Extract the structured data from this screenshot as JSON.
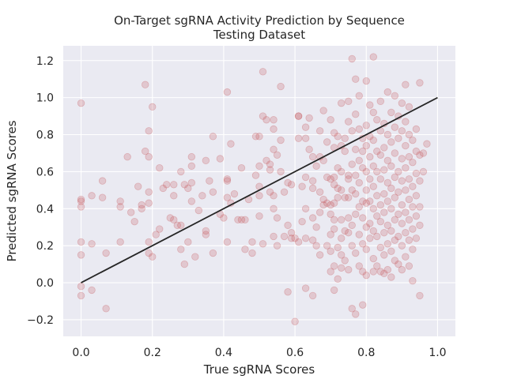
{
  "chart_data": {
    "type": "scatter",
    "title": "On-Target sgRNA Activity Prediction by Sequence",
    "subtitle": "Testing Dataset",
    "xlabel": "True sgRNA Scores",
    "ylabel": "Predicted sgRNA Scores",
    "xlim": [
      -0.05,
      1.05
    ],
    "ylim": [
      -0.29,
      1.28
    ],
    "xticks": [
      0.0,
      0.2,
      0.4,
      0.6,
      0.8,
      1.0
    ],
    "xtick_labels": [
      "0.0",
      "0.2",
      "0.4",
      "0.6",
      "0.8",
      "1.0"
    ],
    "yticks": [
      -0.2,
      0.0,
      0.2,
      0.4,
      0.6,
      0.8,
      1.0,
      1.2
    ],
    "ytick_labels": [
      "−0.2",
      "0.0",
      "0.2",
      "0.4",
      "0.6",
      "0.8",
      "1.0",
      "1.2"
    ],
    "grid": true,
    "colors": {
      "points": "#c44e52",
      "line": "#262626",
      "background": "#eaeaf2",
      "grid": "#ffffff"
    },
    "reference_line": {
      "x": [
        0.0,
        1.0
      ],
      "y": [
        0.0,
        1.0
      ]
    },
    "points": [
      [
        0.0,
        0.97
      ],
      [
        0.0,
        0.45
      ],
      [
        0.0,
        0.44
      ],
      [
        0.0,
        0.41
      ],
      [
        0.0,
        0.22
      ],
      [
        0.0,
        0.15
      ],
      [
        0.0,
        -0.02
      ],
      [
        0.0,
        -0.07
      ],
      [
        0.03,
        -0.04
      ],
      [
        0.03,
        0.47
      ],
      [
        0.03,
        0.21
      ],
      [
        0.06,
        0.46
      ],
      [
        0.06,
        0.55
      ],
      [
        0.07,
        0.16
      ],
      [
        0.07,
        -0.14
      ],
      [
        0.11,
        0.44
      ],
      [
        0.11,
        0.41
      ],
      [
        0.11,
        0.22
      ],
      [
        0.13,
        0.68
      ],
      [
        0.14,
        0.38
      ],
      [
        0.15,
        0.33
      ],
      [
        0.16,
        0.52
      ],
      [
        0.17,
        0.42
      ],
      [
        0.17,
        0.4
      ],
      [
        0.18,
        0.71
      ],
      [
        0.18,
        1.07
      ],
      [
        0.19,
        0.68
      ],
      [
        0.19,
        0.82
      ],
      [
        0.2,
        0.95
      ],
      [
        0.19,
        0.49
      ],
      [
        0.19,
        0.43
      ],
      [
        0.19,
        0.22
      ],
      [
        0.19,
        0.16
      ],
      [
        0.2,
        0.14
      ],
      [
        0.21,
        0.26
      ],
      [
        0.22,
        0.29
      ],
      [
        0.22,
        0.62
      ],
      [
        0.23,
        0.51
      ],
      [
        0.24,
        0.53
      ],
      [
        0.25,
        0.35
      ],
      [
        0.26,
        0.53
      ],
      [
        0.26,
        0.47
      ],
      [
        0.26,
        0.34
      ],
      [
        0.27,
        0.31
      ],
      [
        0.28,
        0.6
      ],
      [
        0.28,
        0.18
      ],
      [
        0.28,
        0.31
      ],
      [
        0.29,
        0.53
      ],
      [
        0.29,
        0.1
      ],
      [
        0.3,
        0.22
      ],
      [
        0.3,
        0.51
      ],
      [
        0.31,
        0.63
      ],
      [
        0.31,
        0.68
      ],
      [
        0.31,
        0.54
      ],
      [
        0.31,
        0.44
      ],
      [
        0.32,
        0.14
      ],
      [
        0.33,
        0.39
      ],
      [
        0.34,
        0.47
      ],
      [
        0.35,
        0.28
      ],
      [
        0.35,
        0.26
      ],
      [
        0.35,
        0.66
      ],
      [
        0.36,
        0.55
      ],
      [
        0.37,
        0.79
      ],
      [
        0.37,
        0.49
      ],
      [
        0.37,
        0.16
      ],
      [
        0.39,
        0.67
      ],
      [
        0.39,
        0.37
      ],
      [
        0.4,
        0.35
      ],
      [
        0.41,
        1.03
      ],
      [
        0.41,
        0.55
      ],
      [
        0.41,
        0.56
      ],
      [
        0.41,
        0.46
      ],
      [
        0.41,
        0.22
      ],
      [
        0.42,
        0.75
      ],
      [
        0.42,
        0.43
      ],
      [
        0.43,
        0.48
      ],
      [
        0.44,
        0.34
      ],
      [
        0.45,
        0.34
      ],
      [
        0.45,
        0.62
      ],
      [
        0.46,
        0.34
      ],
      [
        0.46,
        0.18
      ],
      [
        0.47,
        0.45
      ],
      [
        0.48,
        0.22
      ],
      [
        0.48,
        0.16
      ],
      [
        0.49,
        0.58
      ],
      [
        0.49,
        0.79
      ],
      [
        0.5,
        0.79
      ],
      [
        0.5,
        0.63
      ],
      [
        0.5,
        0.52
      ],
      [
        0.5,
        0.47
      ],
      [
        0.5,
        0.36
      ],
      [
        0.51,
        0.21
      ],
      [
        0.51,
        1.14
      ],
      [
        0.51,
        0.9
      ],
      [
        0.52,
        0.88
      ],
      [
        0.52,
        0.66
      ],
      [
        0.53,
        0.64
      ],
      [
        0.53,
        0.61
      ],
      [
        0.53,
        0.49
      ],
      [
        0.54,
        0.83
      ],
      [
        0.54,
        0.88
      ],
      [
        0.54,
        0.72
      ],
      [
        0.54,
        0.47
      ],
      [
        0.54,
        0.4
      ],
      [
        0.54,
        0.25
      ],
      [
        0.55,
        0.69
      ],
      [
        0.55,
        0.35
      ],
      [
        0.55,
        0.2
      ],
      [
        0.56,
        0.77
      ],
      [
        0.56,
        1.06
      ],
      [
        0.56,
        0.6
      ],
      [
        0.57,
        0.49
      ],
      [
        0.57,
        0.25
      ],
      [
        0.58,
        -0.05
      ],
      [
        0.58,
        0.54
      ],
      [
        0.58,
        0.31
      ],
      [
        0.59,
        0.27
      ],
      [
        0.59,
        0.24
      ],
      [
        0.59,
        0.53
      ],
      [
        0.6,
        -0.21
      ],
      [
        0.6,
        0.24
      ],
      [
        0.61,
        0.9
      ],
      [
        0.61,
        0.9
      ],
      [
        0.61,
        0.78
      ],
      [
        0.61,
        0.22
      ],
      [
        0.62,
        0.52
      ],
      [
        0.62,
        0.33
      ],
      [
        0.63,
        0.84
      ],
      [
        0.63,
        0.78
      ],
      [
        0.63,
        0.57
      ],
      [
        0.63,
        0.4
      ],
      [
        0.63,
        0.24
      ],
      [
        0.63,
        -0.03
      ],
      [
        0.64,
        0.89
      ],
      [
        0.64,
        0.72
      ],
      [
        0.65,
        0.68
      ],
      [
        0.65,
        0.55
      ],
      [
        0.65,
        0.51
      ],
      [
        0.65,
        0.35
      ],
      [
        0.65,
        0.23
      ],
      [
        0.65,
        -0.07
      ],
      [
        0.66,
        0.63
      ],
      [
        0.66,
        0.2
      ],
      [
        0.66,
        0.3
      ],
      [
        0.67,
        0.82
      ],
      [
        0.67,
        0.68
      ],
      [
        0.67,
        0.49
      ],
      [
        0.67,
        0.38
      ],
      [
        0.67,
        0.15
      ],
      [
        0.68,
        0.93
      ],
      [
        0.68,
        0.66
      ],
      [
        0.68,
        0.45
      ],
      [
        0.68,
        0.42
      ],
      [
        0.69,
        0.76
      ],
      [
        0.69,
        0.57
      ],
      [
        0.69,
        0.43
      ],
      [
        0.69,
        0.2
      ],
      [
        0.7,
        0.88
      ],
      [
        0.7,
        0.56
      ],
      [
        0.7,
        0.42
      ],
      [
        0.7,
        0.37
      ],
      [
        0.7,
        0.26
      ],
      [
        0.7,
        0.17
      ],
      [
        0.7,
        0.06
      ],
      [
        0.71,
        0.81
      ],
      [
        0.71,
        0.73
      ],
      [
        0.71,
        0.57
      ],
      [
        0.71,
        0.53
      ],
      [
        0.71,
        0.43
      ],
      [
        0.71,
        0.34
      ],
      [
        0.71,
        0.29
      ],
      [
        0.71,
        0.09
      ],
      [
        0.71,
        -0.04
      ],
      [
        0.72,
        0.79
      ],
      [
        0.72,
        0.62
      ],
      [
        0.72,
        0.51
      ],
      [
        0.72,
        0.46
      ],
      [
        0.72,
        0.19
      ],
      [
        0.72,
        0.02
      ],
      [
        0.73,
        0.97
      ],
      [
        0.73,
        0.74
      ],
      [
        0.73,
        0.6
      ],
      [
        0.73,
        0.5
      ],
      [
        0.73,
        0.34
      ],
      [
        0.73,
        0.24
      ],
      [
        0.73,
        0.15
      ],
      [
        0.73,
        0.08
      ],
      [
        0.74,
        0.78
      ],
      [
        0.74,
        0.71
      ],
      [
        0.74,
        0.46
      ],
      [
        0.74,
        0.28
      ],
      [
        0.74,
        0.12
      ],
      [
        0.75,
        0.98
      ],
      [
        0.75,
        0.87
      ],
      [
        0.75,
        0.58
      ],
      [
        0.75,
        0.56
      ],
      [
        0.75,
        0.46
      ],
      [
        0.75,
        0.35
      ],
      [
        0.75,
        0.27
      ],
      [
        0.75,
        0.07
      ],
      [
        0.76,
        1.21
      ],
      [
        0.76,
        0.82
      ],
      [
        0.76,
        0.64
      ],
      [
        0.76,
        0.5
      ],
      [
        0.76,
        0.31
      ],
      [
        0.76,
        0.2
      ],
      [
        0.76,
        -0.14
      ],
      [
        0.77,
        1.1
      ],
      [
        0.77,
        0.91
      ],
      [
        0.77,
        0.72
      ],
      [
        0.77,
        0.58
      ],
      [
        0.77,
        0.48
      ],
      [
        0.77,
        0.37
      ],
      [
        0.77,
        0.16
      ],
      [
        0.77,
        -0.17
      ],
      [
        0.78,
        1.01
      ],
      [
        0.78,
        0.83
      ],
      [
        0.78,
        0.66
      ],
      [
        0.78,
        0.54
      ],
      [
        0.78,
        0.41
      ],
      [
        0.78,
        0.26
      ],
      [
        0.78,
        0.09
      ],
      [
        0.79,
        0.78
      ],
      [
        0.79,
        0.71
      ],
      [
        0.79,
        0.62
      ],
      [
        0.79,
        0.44
      ],
      [
        0.79,
        0.35
      ],
      [
        0.79,
        0.21
      ],
      [
        0.79,
        0.06
      ],
      [
        0.79,
        -0.12
      ],
      [
        0.8,
        1.09
      ],
      [
        0.8,
        0.85
      ],
      [
        0.8,
        0.74
      ],
      [
        0.8,
        0.6
      ],
      [
        0.8,
        0.5
      ],
      [
        0.8,
        0.43
      ],
      [
        0.8,
        0.3
      ],
      [
        0.8,
        0.18
      ],
      [
        0.8,
        0.04
      ],
      [
        0.81,
        0.96
      ],
      [
        0.81,
        0.79
      ],
      [
        0.81,
        0.68
      ],
      [
        0.81,
        0.56
      ],
      [
        0.81,
        0.44
      ],
      [
        0.81,
        0.32
      ],
      [
        0.81,
        0.24
      ],
      [
        0.82,
        1.22
      ],
      [
        0.82,
        0.92
      ],
      [
        0.82,
        0.77
      ],
      [
        0.82,
        0.63
      ],
      [
        0.82,
        0.52
      ],
      [
        0.82,
        0.4
      ],
      [
        0.82,
        0.28
      ],
      [
        0.82,
        0.13
      ],
      [
        0.82,
        0.06
      ],
      [
        0.83,
        0.88
      ],
      [
        0.83,
        0.71
      ],
      [
        0.83,
        0.6
      ],
      [
        0.83,
        0.47
      ],
      [
        0.83,
        0.36
      ],
      [
        0.83,
        0.25
      ],
      [
        0.83,
        0.09
      ],
      [
        0.84,
        0.98
      ],
      [
        0.84,
        0.82
      ],
      [
        0.84,
        0.69
      ],
      [
        0.84,
        0.56
      ],
      [
        0.84,
        0.42
      ],
      [
        0.84,
        0.33
      ],
      [
        0.84,
        0.19
      ],
      [
        0.84,
        0.06
      ],
      [
        0.85,
        0.86
      ],
      [
        0.85,
        0.73
      ],
      [
        0.85,
        0.61
      ],
      [
        0.85,
        0.48
      ],
      [
        0.85,
        0.38
      ],
      [
        0.85,
        0.27
      ],
      [
        0.85,
        0.15
      ],
      [
        0.85,
        0.05
      ],
      [
        0.86,
        1.03
      ],
      [
        0.86,
        0.8
      ],
      [
        0.86,
        0.66
      ],
      [
        0.86,
        0.54
      ],
      [
        0.86,
        0.44
      ],
      [
        0.86,
        0.31
      ],
      [
        0.86,
        0.21
      ],
      [
        0.86,
        0.07
      ],
      [
        0.87,
        0.92
      ],
      [
        0.87,
        0.76
      ],
      [
        0.87,
        0.63
      ],
      [
        0.87,
        0.51
      ],
      [
        0.87,
        0.4
      ],
      [
        0.87,
        0.28
      ],
      [
        0.87,
        0.17
      ],
      [
        0.87,
        0.03
      ],
      [
        0.88,
        1.01
      ],
      [
        0.88,
        0.84
      ],
      [
        0.88,
        0.7
      ],
      [
        0.88,
        0.57
      ],
      [
        0.88,
        0.46
      ],
      [
        0.88,
        0.34
      ],
      [
        0.88,
        0.23
      ],
      [
        0.88,
        0.12
      ],
      [
        0.89,
        0.9
      ],
      [
        0.89,
        0.78
      ],
      [
        0.89,
        0.6
      ],
      [
        0.89,
        0.49
      ],
      [
        0.89,
        0.37
      ],
      [
        0.89,
        0.25
      ],
      [
        0.89,
        0.1
      ],
      [
        0.9,
        0.97
      ],
      [
        0.9,
        0.82
      ],
      [
        0.9,
        0.67
      ],
      [
        0.9,
        0.55
      ],
      [
        0.9,
        0.42
      ],
      [
        0.9,
        0.32
      ],
      [
        0.9,
        0.2
      ],
      [
        0.9,
        0.07
      ],
      [
        0.91,
        1.07
      ],
      [
        0.91,
        0.87
      ],
      [
        0.91,
        0.74
      ],
      [
        0.91,
        0.62
      ],
      [
        0.91,
        0.5
      ],
      [
        0.91,
        0.38
      ],
      [
        0.91,
        0.27
      ],
      [
        0.91,
        0.14
      ],
      [
        0.92,
        0.95
      ],
      [
        0.92,
        0.8
      ],
      [
        0.92,
        0.68
      ],
      [
        0.92,
        0.56
      ],
      [
        0.92,
        0.45
      ],
      [
        0.92,
        0.34
      ],
      [
        0.92,
        0.23
      ],
      [
        0.92,
        0.09
      ],
      [
        0.93,
        0.77
      ],
      [
        0.93,
        0.65
      ],
      [
        0.93,
        0.52
      ],
      [
        0.93,
        0.41
      ],
      [
        0.93,
        0.29
      ],
      [
        0.93,
        0.18
      ],
      [
        0.93,
        0.01
      ],
      [
        0.94,
        0.83
      ],
      [
        0.94,
        0.71
      ],
      [
        0.94,
        0.59
      ],
      [
        0.94,
        0.47
      ],
      [
        0.94,
        0.36
      ],
      [
        0.94,
        0.24
      ],
      [
        0.95,
        1.08
      ],
      [
        0.95,
        0.69
      ],
      [
        0.95,
        0.55
      ],
      [
        0.95,
        0.41
      ],
      [
        0.95,
        0.31
      ],
      [
        0.95,
        -0.07
      ],
      [
        0.96,
        0.7
      ],
      [
        0.96,
        0.6
      ],
      [
        0.97,
        0.75
      ]
    ]
  }
}
